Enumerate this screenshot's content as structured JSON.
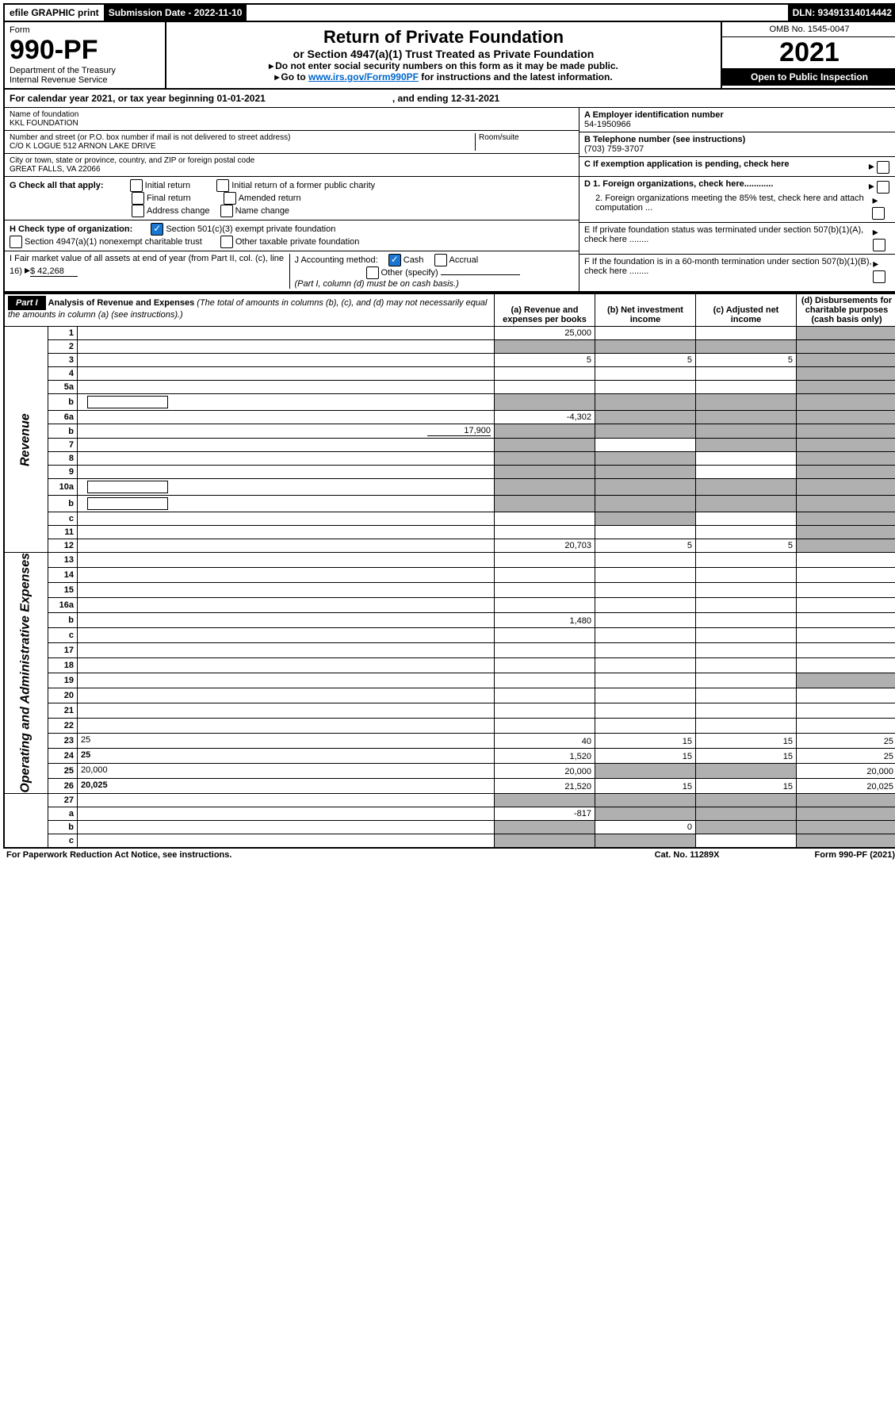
{
  "topbar": {
    "efile": "efile GRAPHIC print",
    "subdate_label": "Submission Date - 2022-11-10",
    "dln": "DLN: 93491314014442"
  },
  "header": {
    "form_label": "Form",
    "form_num": "990-PF",
    "dept": "Department of the Treasury",
    "irs": "Internal Revenue Service",
    "title": "Return of Private Foundation",
    "sub": "or Section 4947(a)(1) Trust Treated as Private Foundation",
    "warn": "Do not enter social security numbers on this form as it may be made public.",
    "goto_pre": "Go to ",
    "goto_link": "www.irs.gov/Form990PF",
    "goto_post": " for instructions and the latest information.",
    "omb": "OMB No. 1545-0047",
    "year": "2021",
    "open": "Open to Public Inspection"
  },
  "calendar": {
    "pre": "For calendar year 2021, or tax year beginning 01-01-2021",
    "end": ", and ending 12-31-2021"
  },
  "entity": {
    "name_label": "Name of foundation",
    "name": "KKL FOUNDATION",
    "addr_label": "Number and street (or P.O. box number if mail is not delivered to street address)",
    "room_label": "Room/suite",
    "addr": "C/O K LOGUE 512 ARNON LAKE DRIVE",
    "city_label": "City or town, state or province, country, and ZIP or foreign postal code",
    "city": "GREAT FALLS, VA  22066",
    "a_label": "A Employer identification number",
    "a_val": "54-1950966",
    "b_label": "B Telephone number (see instructions)",
    "b_val": "(703) 759-3707",
    "c_label": "C If exemption application is pending, check here",
    "d1": "D 1. Foreign organizations, check here............",
    "d2": "2. Foreign organizations meeting the 85% test, check here and attach computation ...",
    "e_label": "E  If private foundation status was terminated under section 507(b)(1)(A), check here ........",
    "f_label": "F  If the foundation is in a 60-month termination under section 507(b)(1)(B), check here ........"
  },
  "g": {
    "label": "G Check all that apply:",
    "initial": "Initial return",
    "initial_former": "Initial return of a former public charity",
    "final": "Final return",
    "amended": "Amended return",
    "addr_change": "Address change",
    "name_change": "Name change"
  },
  "h": {
    "label": "H Check type of organization:",
    "s501": "Section 501(c)(3) exempt private foundation",
    "s4947": "Section 4947(a)(1) nonexempt charitable trust",
    "other_tax": "Other taxable private foundation"
  },
  "i": {
    "label": "I Fair market value of all assets at end of year (from Part II, col. (c), line 16)",
    "val": "$  42,268"
  },
  "j": {
    "label": "J Accounting method:",
    "cash": "Cash",
    "accrual": "Accrual",
    "other": "Other (specify)",
    "note": "(Part I, column (d) must be on cash basis.)"
  },
  "part1": {
    "label": "Part I",
    "title": "Analysis of Revenue and Expenses",
    "note": "(The total of amounts in columns (b), (c), and (d) may not necessarily equal the amounts in column (a) (see instructions).)",
    "col_a": "(a)  Revenue and expenses per books",
    "col_b": "(b)  Net investment income",
    "col_c": "(c)  Adjusted net income",
    "col_d": "(d)  Disbursements for charitable purposes (cash basis only)"
  },
  "sides": {
    "rev": "Revenue",
    "exp": "Operating and Administrative Expenses"
  },
  "rows": [
    {
      "n": "1",
      "d": "",
      "a": "25,000",
      "b": "",
      "c": "",
      "dgray": true
    },
    {
      "n": "2",
      "d": "",
      "a": "",
      "b": "",
      "c": "",
      "allgray": true
    },
    {
      "n": "3",
      "d": "",
      "a": "5",
      "b": "5",
      "c": "5",
      "dgray": true
    },
    {
      "n": "4",
      "d": "",
      "a": "",
      "b": "",
      "c": "",
      "dgray": true
    },
    {
      "n": "5a",
      "d": "",
      "a": "",
      "b": "",
      "c": "",
      "dgray": true
    },
    {
      "n": "b",
      "d": "",
      "a": "",
      "b": "",
      "c": "",
      "allgray": true,
      "desc_input": true
    },
    {
      "n": "6a",
      "d": "",
      "a": "-4,302",
      "b": "",
      "c": "",
      "bcdgray": true
    },
    {
      "n": "b",
      "d": "",
      "a": "",
      "b": "",
      "c": "",
      "allgray": true,
      "inline_val": "17,900"
    },
    {
      "n": "7",
      "d": "",
      "a": "",
      "b": "",
      "c": "",
      "agray": true,
      "cdgray": true
    },
    {
      "n": "8",
      "d": "",
      "a": "",
      "b": "",
      "c": "",
      "abgray": true,
      "dgray": true
    },
    {
      "n": "9",
      "d": "",
      "a": "",
      "b": "",
      "c": "",
      "abgray": true,
      "dgray": true
    },
    {
      "n": "10a",
      "d": "",
      "a": "",
      "b": "",
      "c": "",
      "allgray": true,
      "desc_input": true
    },
    {
      "n": "b",
      "d": "",
      "a": "",
      "b": "",
      "c": "",
      "allgray": true,
      "desc_input": true
    },
    {
      "n": "c",
      "d": "",
      "a": "",
      "b": "",
      "c": "",
      "bgray": true,
      "dgray": true
    },
    {
      "n": "11",
      "d": "",
      "a": "",
      "b": "",
      "c": "",
      "dgray": true
    },
    {
      "n": "12",
      "d": "",
      "a": "20,703",
      "b": "5",
      "c": "5",
      "bold": true,
      "dgray": true
    }
  ],
  "exprows": [
    {
      "n": "13",
      "d": "",
      "a": "",
      "b": "",
      "c": ""
    },
    {
      "n": "14",
      "d": "",
      "a": "",
      "b": "",
      "c": ""
    },
    {
      "n": "15",
      "d": "",
      "a": "",
      "b": "",
      "c": ""
    },
    {
      "n": "16a",
      "d": "",
      "a": "",
      "b": "",
      "c": ""
    },
    {
      "n": "b",
      "d": "",
      "a": "1,480",
      "b": "",
      "c": ""
    },
    {
      "n": "c",
      "d": "",
      "a": "",
      "b": "",
      "c": ""
    },
    {
      "n": "17",
      "d": "",
      "a": "",
      "b": "",
      "c": ""
    },
    {
      "n": "18",
      "d": "",
      "a": "",
      "b": "",
      "c": ""
    },
    {
      "n": "19",
      "d": "",
      "a": "",
      "b": "",
      "c": "",
      "dgray": true
    },
    {
      "n": "20",
      "d": "",
      "a": "",
      "b": "",
      "c": ""
    },
    {
      "n": "21",
      "d": "",
      "a": "",
      "b": "",
      "c": ""
    },
    {
      "n": "22",
      "d": "",
      "a": "",
      "b": "",
      "c": ""
    },
    {
      "n": "23",
      "d": "25",
      "a": "40",
      "b": "15",
      "c": "15"
    },
    {
      "n": "24",
      "d": "25",
      "a": "1,520",
      "b": "15",
      "c": "15",
      "bold": true
    },
    {
      "n": "25",
      "d": "20,000",
      "a": "20,000",
      "b": "",
      "c": "",
      "bcgray": true
    },
    {
      "n": "26",
      "d": "20,025",
      "a": "21,520",
      "b": "15",
      "c": "15",
      "bold": true
    }
  ],
  "netrows": [
    {
      "n": "27",
      "d": "",
      "a": "",
      "b": "",
      "c": "",
      "allgray": true
    },
    {
      "n": "a",
      "d": "",
      "a": "-817",
      "b": "",
      "c": "",
      "bold": true,
      "bcdgray": true
    },
    {
      "n": "b",
      "d": "",
      "a": "",
      "b": "0",
      "c": "",
      "bold": true,
      "agray": true,
      "cdgray": true
    },
    {
      "n": "c",
      "d": "",
      "a": "",
      "b": "",
      "c": "",
      "bold": true,
      "abgray": true,
      "dgray": true
    }
  ],
  "footer": {
    "left": "For Paperwork Reduction Act Notice, see instructions.",
    "mid": "Cat. No. 11289X",
    "right": "Form 990-PF (2021)"
  }
}
